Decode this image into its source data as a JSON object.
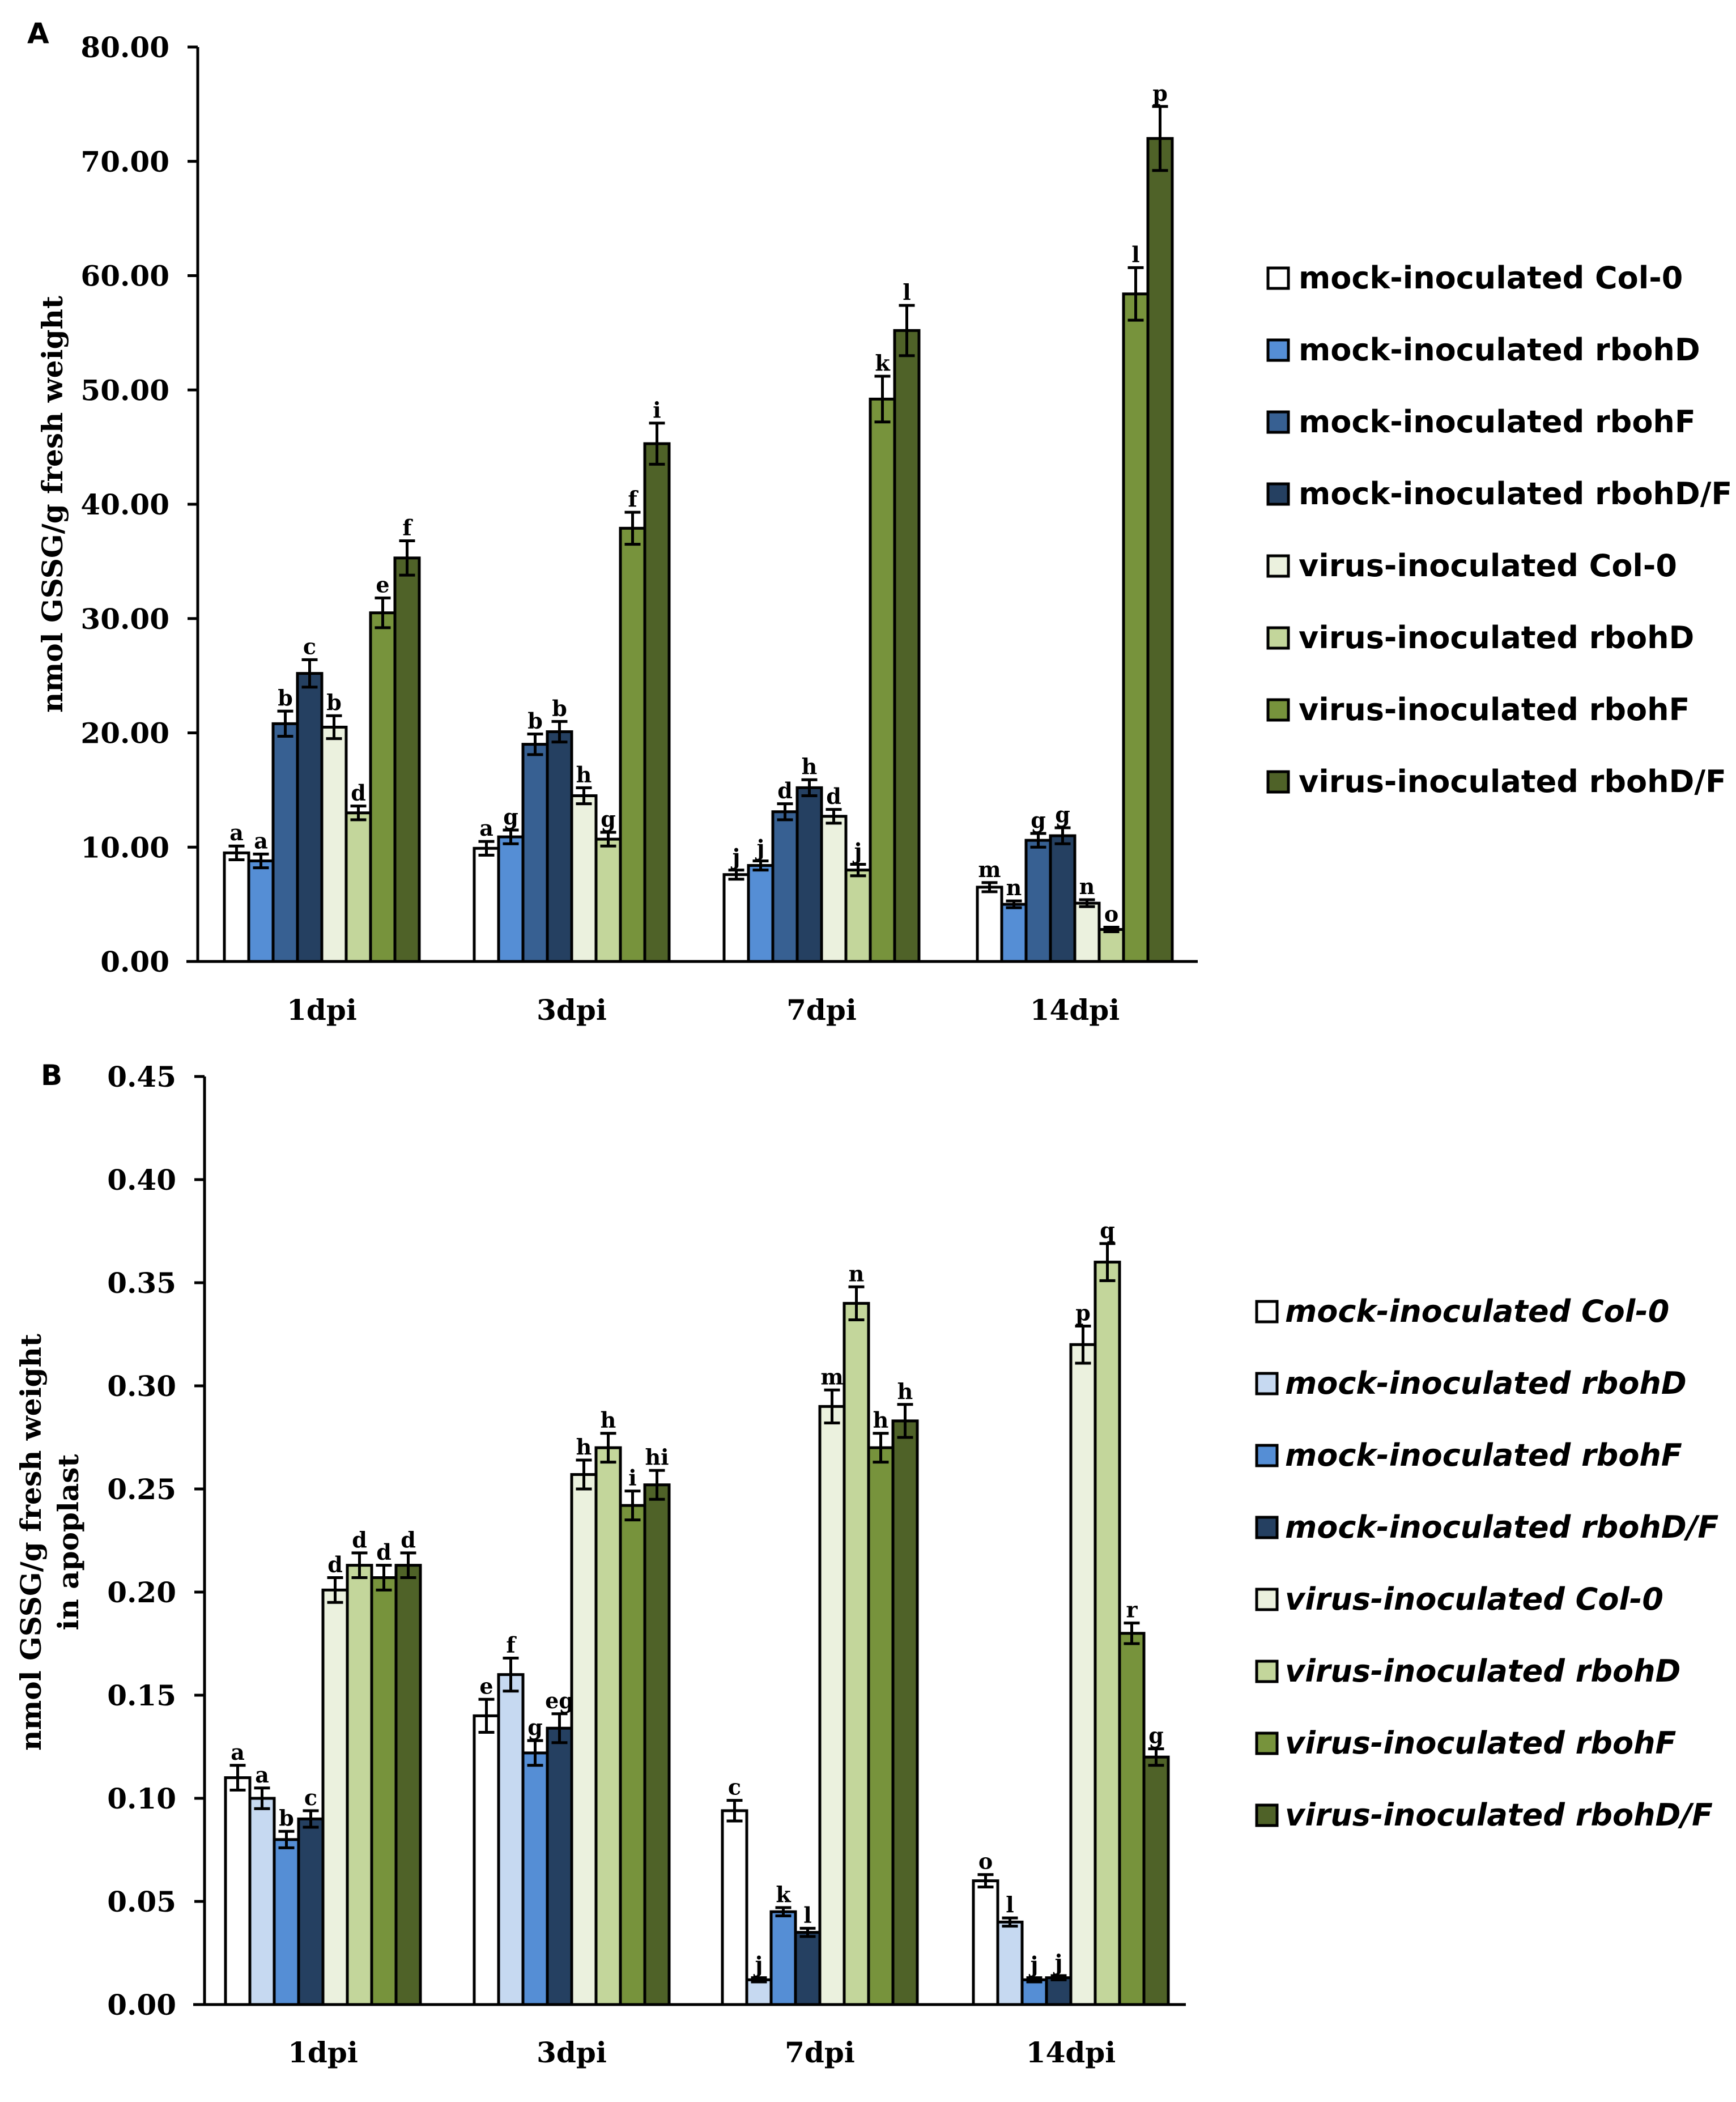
{
  "chart_data": [
    {
      "panel": "A",
      "type": "bar",
      "ylabel": "nmol GSSG/g  fresh weight",
      "ylabel_lines": [
        "nmol GSSG/g  fresh weight"
      ],
      "ylim": [
        0,
        80
      ],
      "yticks": [
        "0.00",
        "10.00",
        "20.00",
        "30.00",
        "40.00",
        "50.00",
        "60.00",
        "70.00",
        "80.00"
      ],
      "ytick_values": [
        0,
        10,
        20,
        30,
        40,
        50,
        60,
        70,
        80
      ],
      "categories": [
        "1dpi",
        "3dpi",
        "7dpi",
        "14dpi"
      ],
      "legend_italic": false,
      "legend_placement": "right",
      "series": [
        {
          "name": "mock-inoculated Col-0",
          "color": "#ffffff",
          "values": [
            9.5,
            9.9,
            7.6,
            6.5
          ],
          "errors": [
            0.6,
            0.6,
            0.4,
            0.4
          ],
          "letters": [
            "a",
            "a",
            "j",
            "m"
          ]
        },
        {
          "name": "mock-inoculated rbohD",
          "color": "#558ed5",
          "values": [
            8.8,
            10.9,
            8.4,
            5.0
          ],
          "errors": [
            0.6,
            0.6,
            0.4,
            0.3
          ],
          "letters": [
            "a",
            "g",
            "j",
            "n"
          ]
        },
        {
          "name": "mock-inoculated rbohF",
          "color": "#376092",
          "values": [
            20.8,
            19.0,
            13.1,
            10.6
          ],
          "errors": [
            1.1,
            0.9,
            0.7,
            0.6
          ],
          "letters": [
            "b",
            "b",
            "d",
            "g"
          ]
        },
        {
          "name": "mock-inoculated rbohD/F",
          "color": "#254061",
          "values": [
            25.2,
            20.1,
            15.2,
            11.0
          ],
          "errors": [
            1.2,
            0.9,
            0.7,
            0.7
          ],
          "letters": [
            "c",
            "b",
            "h",
            "g"
          ]
        },
        {
          "name": "virus-inoculated Col-0",
          "color": "#ebf1de",
          "values": [
            20.5,
            14.5,
            12.7,
            5.1
          ],
          "errors": [
            1.0,
            0.7,
            0.6,
            0.3
          ],
          "letters": [
            "b",
            "h",
            "d",
            "n"
          ]
        },
        {
          "name": "virus-inoculated rbohD",
          "color": "#c3d69b",
          "values": [
            13.0,
            10.7,
            8.0,
            2.8
          ],
          "errors": [
            0.6,
            0.6,
            0.5,
            0.2
          ],
          "letters": [
            "d",
            "g",
            "j",
            "o"
          ]
        },
        {
          "name": "virus-inoculated rbohF",
          "color": "#77933c",
          "values": [
            30.5,
            37.9,
            49.2,
            58.4
          ],
          "errors": [
            1.3,
            1.4,
            2.0,
            2.3
          ],
          "letters": [
            "e",
            "f",
            "k",
            "l"
          ]
        },
        {
          "name": "virus-inoculated rbohD/F",
          "color": "#4f6228",
          "values": [
            35.3,
            45.3,
            55.2,
            72.0
          ],
          "errors": [
            1.5,
            1.8,
            2.2,
            2.8
          ],
          "letters": [
            "f",
            "i",
            "l",
            "p"
          ]
        }
      ]
    },
    {
      "panel": "B",
      "type": "bar",
      "ylabel": "nmol GSSG/g  fresh weight in apoplast",
      "ylabel_lines": [
        "nmol GSSG/g  fresh weight",
        "in apoplast"
      ],
      "ylim": [
        0,
        0.45
      ],
      "yticks": [
        "0.00",
        "0.05",
        "0.10",
        "0.15",
        "0.20",
        "0.25",
        "0.30",
        "0.35",
        "0.40",
        "0.45"
      ],
      "ytick_values": [
        0,
        0.05,
        0.1,
        0.15,
        0.2,
        0.25,
        0.3,
        0.35,
        0.4,
        0.45
      ],
      "categories": [
        "1dpi",
        "3dpi",
        "7dpi",
        "14dpi"
      ],
      "legend_italic": true,
      "legend_placement": "right",
      "series": [
        {
          "name": "mock-inoculated Col-0",
          "color": "#ffffff",
          "values": [
            0.11,
            0.14,
            0.094,
            0.06
          ],
          "errors": [
            0.006,
            0.008,
            0.005,
            0.003
          ],
          "letters": [
            "a",
            "e",
            "c",
            "o"
          ]
        },
        {
          "name": "mock-inoculated rbohD",
          "color": "#c6d9f1",
          "values": [
            0.1,
            0.16,
            0.012,
            0.04
          ],
          "errors": [
            0.005,
            0.008,
            0.001,
            0.002
          ],
          "letters": [
            "a",
            "f",
            "j",
            "l"
          ]
        },
        {
          "name": "mock-inoculated rbohF",
          "color": "#558ed5",
          "values": [
            0.08,
            0.122,
            0.045,
            0.012
          ],
          "errors": [
            0.004,
            0.006,
            0.002,
            0.001
          ],
          "letters": [
            "b",
            "g",
            "k",
            "j"
          ]
        },
        {
          "name": "mock-inoculated rbohD/F",
          "color": "#254061",
          "values": [
            0.09,
            0.134,
            0.035,
            0.013
          ],
          "errors": [
            0.004,
            0.007,
            0.002,
            0.001
          ],
          "letters": [
            "c",
            "eg",
            "l",
            "j"
          ]
        },
        {
          "name": "virus-inoculated Col-0",
          "color": "#ebf1de",
          "values": [
            0.201,
            0.257,
            0.29,
            0.32
          ],
          "errors": [
            0.006,
            0.007,
            0.008,
            0.009
          ],
          "letters": [
            "d",
            "h",
            "m",
            "p"
          ]
        },
        {
          "name": "virus-inoculated rbohD",
          "color": "#c3d69b",
          "values": [
            0.213,
            0.27,
            0.34,
            0.36
          ],
          "errors": [
            0.006,
            0.007,
            0.008,
            0.009
          ],
          "letters": [
            "d",
            "h",
            "n",
            "q"
          ]
        },
        {
          "name": "virus-inoculated rbohF",
          "color": "#77933c",
          "values": [
            0.207,
            0.242,
            0.27,
            0.18
          ],
          "errors": [
            0.006,
            0.007,
            0.007,
            0.005
          ],
          "letters": [
            "d",
            "i",
            "h",
            "r"
          ]
        },
        {
          "name": "virus-inoculated rbohD/F",
          "color": "#4f6228",
          "values": [
            0.213,
            0.252,
            0.283,
            0.12
          ],
          "errors": [
            0.006,
            0.007,
            0.008,
            0.004
          ],
          "letters": [
            "d",
            "hi",
            "h",
            "g"
          ]
        }
      ]
    }
  ]
}
